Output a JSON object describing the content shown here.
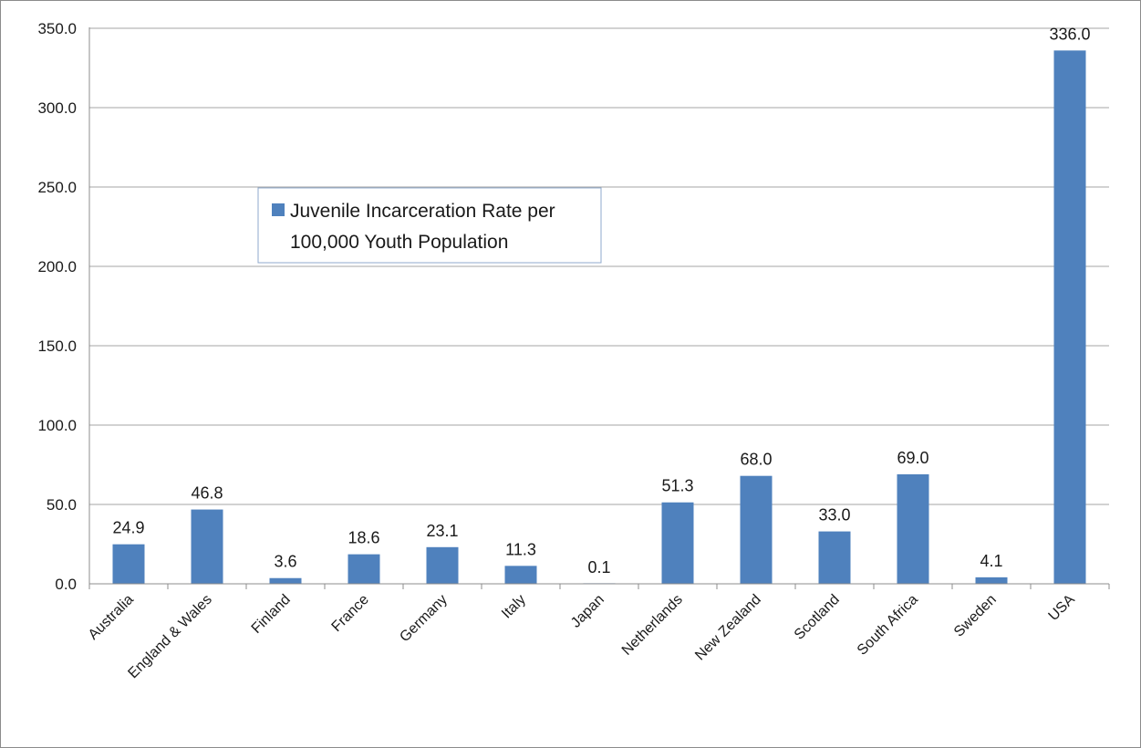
{
  "chart_data": {
    "type": "bar",
    "title": "",
    "xlabel": "",
    "ylabel": "",
    "ylim": [
      0,
      350
    ],
    "yticks": [
      "0.0",
      "50.0",
      "100.0",
      "150.0",
      "200.0",
      "250.0",
      "300.0",
      "350.0"
    ],
    "grid": true,
    "legend_position": "upper-left-center",
    "bar_color": "#4f81bd",
    "categories": [
      "Australia",
      "England & Wales",
      "Finland",
      "France",
      "Germany",
      "Italy",
      "Japan",
      "Netherlands",
      "New Zealand",
      "Scotland",
      "South Africa",
      "Sweden",
      "USA"
    ],
    "series": [
      {
        "name": "Juvenile Incarceration Rate per 100,000 Youth Population",
        "legend_lines": [
          "Juvenile Incarceration Rate per",
          "100,000 Youth Population"
        ],
        "values": [
          24.9,
          46.8,
          3.6,
          18.6,
          23.1,
          11.3,
          0.1,
          51.3,
          68.0,
          33.0,
          69.0,
          4.1,
          336.0
        ],
        "data_labels": [
          "24.9",
          "46.8",
          "3.6",
          "18.6",
          "23.1",
          "11.3",
          "0.1",
          "51.3",
          "68.0",
          "33.0",
          "69.0",
          "4.1",
          "336.0"
        ]
      }
    ]
  }
}
